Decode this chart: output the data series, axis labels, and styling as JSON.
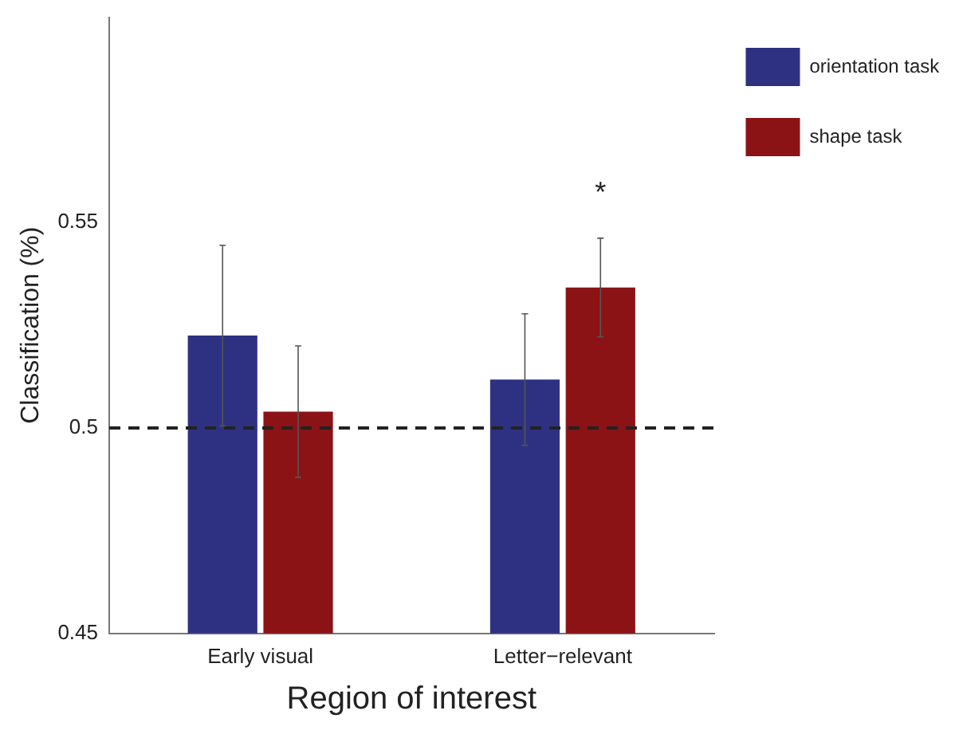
{
  "chart_data": {
    "type": "bar",
    "xlabel": "Region of interest",
    "ylabel": "Classification (%)",
    "categories": [
      "Early visual",
      "Letter−relevant"
    ],
    "series": [
      {
        "name": "orientation task",
        "color": "#2e3182",
        "values": [
          0.5225,
          0.5118
        ],
        "errors": [
          0.022,
          0.016
        ]
      },
      {
        "name": "shape task",
        "color": "#8b1316",
        "values": [
          0.504,
          0.5342
        ],
        "errors": [
          0.016,
          0.012
        ]
      }
    ],
    "ylim": [
      0.45,
      0.6
    ],
    "yticks": [
      0.45,
      0.5,
      0.55
    ],
    "grid": false,
    "legend": "top right",
    "ref_lines": [
      {
        "axis": "y",
        "value": 0.5,
        "color": "#222222",
        "line_style": "dashed"
      }
    ],
    "annotations": [
      "*"
    ]
  }
}
